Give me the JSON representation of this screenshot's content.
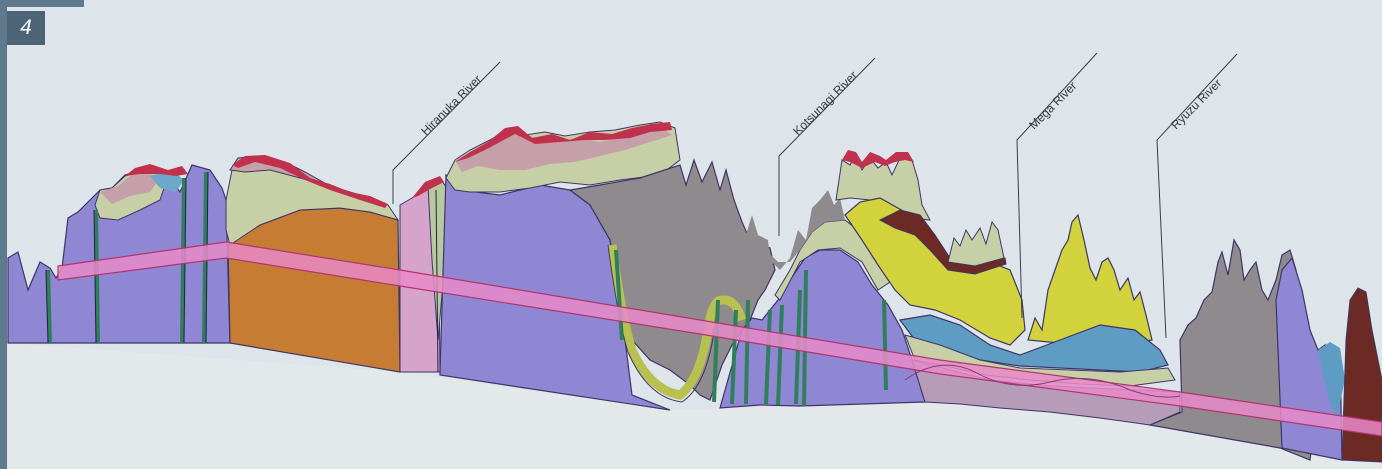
{
  "figure": {
    "number": "4"
  },
  "colors": {
    "background": "#dde5ea",
    "frame": "#5f7a8c",
    "badge": "#4b6476",
    "lavender_rock": "#8f86d4",
    "orange_rock": "#c77c34",
    "pink_rock": "#d6a3cc",
    "gray_rock": "#8f8a8d",
    "sage_layer": "#c7cfa6",
    "mauve_layer": "#c5a0a8",
    "crimson_layer": "#c0314d",
    "yellow_rock": "#d2d23c",
    "blue_rock": "#5f9cc4",
    "brown_rock": "#6b2a24",
    "dark_green_dike": "#2f7f5a",
    "tunnel_band": "#e889c8"
  },
  "rivers": [
    {
      "id": "hiranuka",
      "label": "Hiranuka River"
    },
    {
      "id": "kotsunagi",
      "label": "Kotsunagi River"
    },
    {
      "id": "mega",
      "label": "Mega River"
    },
    {
      "id": "ryuzu",
      "label": "Ryuzu River"
    }
  ]
}
